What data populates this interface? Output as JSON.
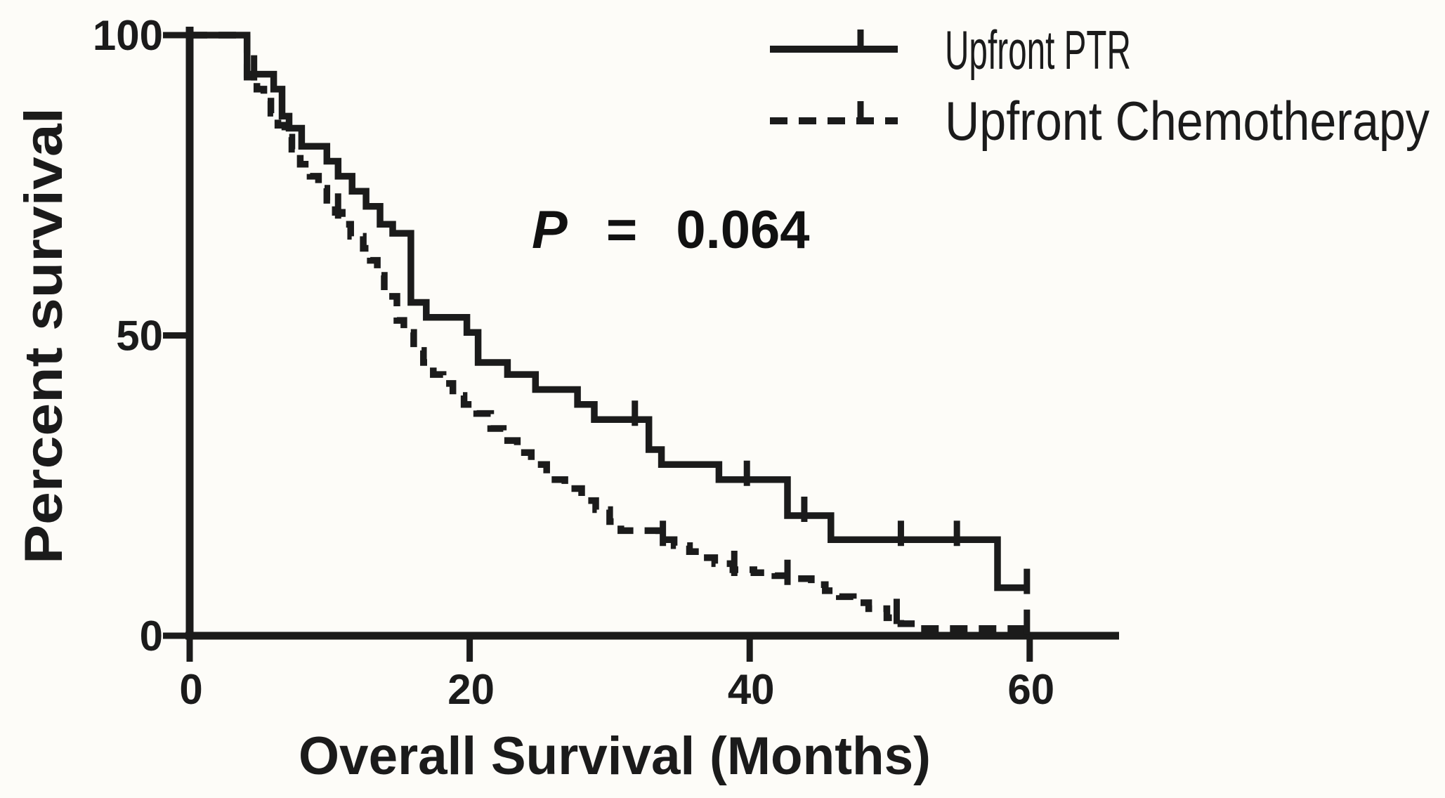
{
  "chart_data": {
    "type": "line",
    "subtype": "kaplan-meier-step",
    "title": "",
    "xlabel": "Overall Survival (Months)",
    "ylabel": "Percent survival",
    "xlim": [
      0,
      66
    ],
    "ylim": [
      0,
      100
    ],
    "grid": false,
    "legend_position": "top-right",
    "ink_color": "#1b1b1b",
    "background_color": "#fdfcf8",
    "annotation": {
      "text": "P = 0.064",
      "symbol": "P",
      "eq": "=",
      "value": "0.064"
    },
    "x_ticks": [
      {
        "value": 0,
        "label": "0"
      },
      {
        "value": 20,
        "label": "20"
      },
      {
        "value": 40,
        "label": "40"
      },
      {
        "value": 60,
        "label": "60"
      }
    ],
    "y_ticks": [
      {
        "value": 0,
        "label": "0"
      },
      {
        "value": 50,
        "label": "50"
      },
      {
        "value": 100,
        "label": "100"
      }
    ],
    "series": [
      {
        "name": "Upfront PTR",
        "style": "solid",
        "end_month": 59.8,
        "points": [
          [
            0,
            100
          ],
          [
            4.1,
            93.5
          ],
          [
            6,
            91
          ],
          [
            6.6,
            86.5
          ],
          [
            7.1,
            84.5
          ],
          [
            8,
            81.5
          ],
          [
            9.8,
            79
          ],
          [
            10.6,
            76.5
          ],
          [
            11.6,
            74
          ],
          [
            12.6,
            71.5
          ],
          [
            13.6,
            68.5
          ],
          [
            14.5,
            67
          ],
          [
            15.8,
            55.5
          ],
          [
            16.9,
            53
          ],
          [
            19.8,
            50.5
          ],
          [
            20.6,
            45.5
          ],
          [
            22.7,
            43.5
          ],
          [
            24.7,
            41
          ],
          [
            27.7,
            38.5
          ],
          [
            28.9,
            36
          ],
          [
            32.8,
            31
          ],
          [
            33.7,
            28.5
          ],
          [
            37.8,
            26
          ],
          [
            42.7,
            20
          ],
          [
            45.8,
            16
          ],
          [
            57.7,
            8
          ]
        ],
        "censor_marks": [
          [
            4.6,
            93.5
          ],
          [
            31.8,
            36
          ],
          [
            39.8,
            26
          ],
          [
            43.9,
            20
          ],
          [
            50.8,
            16
          ],
          [
            54.8,
            16
          ],
          [
            59.8,
            8
          ]
        ]
      },
      {
        "name": "Upfront Chemotherapy",
        "style": "dashed",
        "end_month": 59.8,
        "points": [
          [
            0,
            100
          ],
          [
            4.1,
            93
          ],
          [
            4.8,
            91
          ],
          [
            5.3,
            89
          ],
          [
            5.8,
            87
          ],
          [
            6.3,
            85
          ],
          [
            6.8,
            83
          ],
          [
            7.3,
            81
          ],
          [
            7.9,
            78.5
          ],
          [
            8.6,
            76.5
          ],
          [
            9.2,
            74.5
          ],
          [
            9.8,
            72.5
          ],
          [
            10.4,
            70.5
          ],
          [
            10.9,
            68.5
          ],
          [
            11.5,
            66.5
          ],
          [
            12.4,
            64.5
          ],
          [
            12.9,
            62.5
          ],
          [
            13.4,
            60
          ],
          [
            13.9,
            56.5
          ],
          [
            14.8,
            52.5
          ],
          [
            15.3,
            50.5
          ],
          [
            16,
            47.5
          ],
          [
            16.7,
            45.5
          ],
          [
            17.4,
            43.5
          ],
          [
            18.1,
            42
          ],
          [
            18.8,
            40
          ],
          [
            19.6,
            38.5
          ],
          [
            20.5,
            37
          ],
          [
            21.5,
            34.5
          ],
          [
            22.4,
            32.5
          ],
          [
            23.4,
            30.5
          ],
          [
            24.4,
            28.5
          ],
          [
            25.5,
            26
          ],
          [
            26.8,
            24.5
          ],
          [
            28,
            22.5
          ],
          [
            29,
            21
          ],
          [
            30,
            19
          ],
          [
            30.8,
            17.5
          ],
          [
            33.5,
            16
          ],
          [
            34.6,
            15
          ],
          [
            35.7,
            14
          ],
          [
            36.6,
            13
          ],
          [
            37.5,
            12
          ],
          [
            38.8,
            11
          ],
          [
            40.3,
            10.5
          ],
          [
            41.8,
            10
          ],
          [
            43.2,
            9.5
          ],
          [
            44.4,
            8.5
          ],
          [
            45.4,
            7.5
          ],
          [
            46.4,
            6.5
          ],
          [
            47.4,
            5.5
          ],
          [
            48.5,
            4.5
          ],
          [
            49.8,
            3
          ],
          [
            50.8,
            2
          ],
          [
            52,
            1.2
          ]
        ],
        "censor_marks": [
          [
            10.6,
            70.5
          ],
          [
            33.8,
            16
          ],
          [
            38.9,
            11
          ],
          [
            42.7,
            9.5
          ],
          [
            50.5,
            3
          ],
          [
            59.8,
            1.2
          ]
        ]
      }
    ]
  }
}
